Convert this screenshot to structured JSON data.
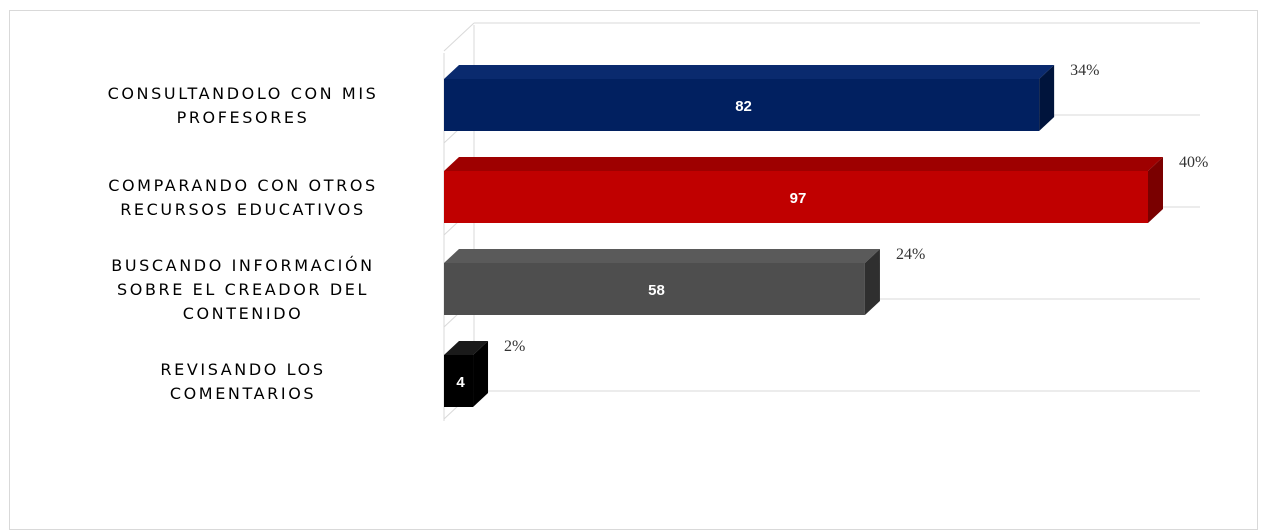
{
  "chart_data": {
    "type": "bar",
    "orientation": "horizontal",
    "style": "3d",
    "categories": [
      [
        "CONSULTANDOLO CON MIS",
        "PROFESORES"
      ],
      [
        "COMPARANDO CON OTROS",
        "RECURSOS EDUCATIVOS"
      ],
      [
        "BUSCANDO INFORMACIÓN",
        "SOBRE EL CREADOR DEL",
        "CONTENIDO"
      ],
      [
        "REVISANDO LOS",
        "COMENTARIOS"
      ]
    ],
    "values": [
      82,
      97,
      58,
      4
    ],
    "percent_labels": [
      "34%",
      "40%",
      "24%",
      "2%"
    ],
    "colors": [
      "#012060",
      "#c00000",
      "#4e4e4e",
      "#000000"
    ],
    "side_colors": [
      "#00143c",
      "#7a0000",
      "#2f2f2f",
      "#000000"
    ],
    "top_colors": [
      "#0a2a6e",
      "#9e0000",
      "#5a5a5a",
      "#1a1a1a"
    ],
    "grid": true,
    "legend": "none",
    "axes_visible": false
  }
}
